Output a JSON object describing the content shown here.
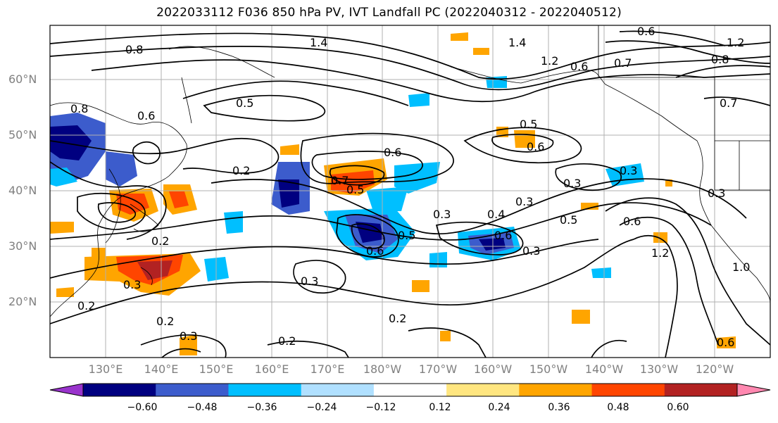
{
  "title": "2022033112 F036 850 hPa PV, IVT Landfall PC (2022040312 - 2022040512)",
  "latitude_labels": [
    "60°N",
    "50°N",
    "40°N",
    "30°N",
    "20°N"
  ],
  "longitude_labels": [
    "130°E",
    "140°E",
    "150°E",
    "160°E",
    "170°E",
    "180°W",
    "170°W",
    "160°W",
    "150°W",
    "140°W",
    "130°W",
    "120°W"
  ],
  "colorbar": {
    "tick_labels": [
      "−0.60",
      "−0.48",
      "−0.36",
      "−0.24",
      "−0.12",
      "0.12",
      "0.24",
      "0.36",
      "0.48",
      "0.60"
    ],
    "colors": [
      "#9933cc",
      "#000080",
      "#3c5ccc",
      "#00bfff",
      "#b0e0ff",
      "#ffffff",
      "#ffe680",
      "#ffa500",
      "#ff4500",
      "#b22222",
      "#ff88b0"
    ]
  },
  "contour_labels": [
    "1.4",
    "1.4",
    "1.2",
    "1.2",
    "0.8",
    "0.6",
    "0.7",
    "0.7",
    "0.6",
    "0.5",
    "0.5",
    "0.6",
    "0.6",
    "0.3",
    "0.3",
    "0.4",
    "0.3",
    "0.5",
    "0.6",
    "0.3",
    "0.6",
    "0.3",
    "0.3",
    "0.2",
    "0.2",
    "0.3",
    "0.2",
    "0.2",
    "0.3",
    "0.2",
    "0.6",
    "0.7",
    "0.5",
    "0.2",
    "0.5",
    "0.6",
    "1.0",
    "0.3",
    "0.8",
    "1.2",
    "0.8",
    "0.6"
  ]
}
